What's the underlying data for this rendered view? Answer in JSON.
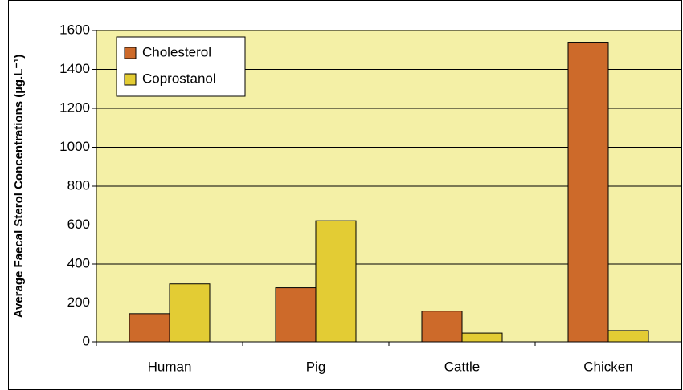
{
  "chart_data": {
    "type": "bar",
    "y_label": "Average Faecal Sterol Concentrations (µg.L⁻¹)",
    "categories": [
      "Human",
      "Pig",
      "Cattle",
      "Chicken"
    ],
    "series": [
      {
        "name": "Cholesterol",
        "color": "#cd6a2a",
        "values": [
          145,
          278,
          158,
          1540
        ]
      },
      {
        "name": "Coprostanol",
        "color": "#e3cc34",
        "values": [
          298,
          622,
          45,
          58
        ]
      }
    ],
    "ylim": [
      0,
      1600
    ],
    "yticks": [
      0,
      200,
      400,
      600,
      800,
      1000,
      1200,
      1400,
      1600
    ],
    "grid": true,
    "legend": "top-left",
    "plot_background": "#f4f0a6"
  }
}
